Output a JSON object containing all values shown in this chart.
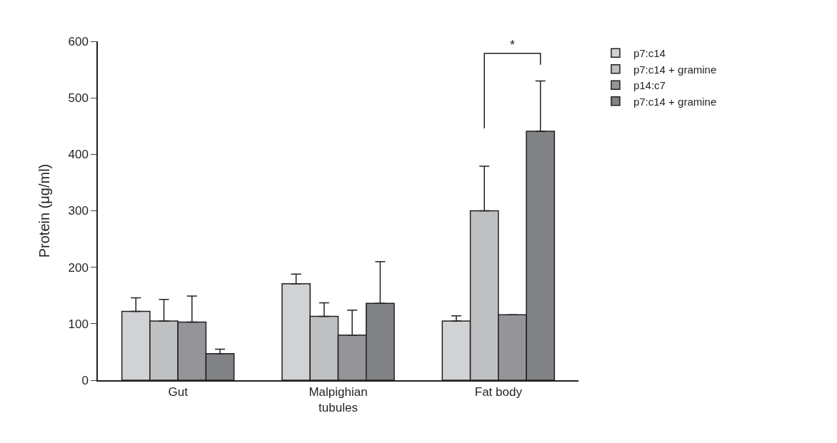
{
  "chart_data": {
    "type": "bar",
    "ylabel": "Protein (μg/ml)",
    "categories": [
      "Gut",
      "Malpighian\ntubules",
      "Fat body"
    ],
    "series": [
      {
        "name": "p7:c14",
        "color": "#d1d2d4",
        "values": [
          122,
          171,
          105
        ],
        "errors": [
          [
            122,
            146
          ],
          [
            171,
            188
          ],
          [
            105,
            114
          ]
        ]
      },
      {
        "name": "p7:c14 + gramine",
        "color": "#bfc0c2",
        "values": [
          105,
          113,
          300
        ],
        "errors": [
          [
            105,
            143
          ],
          [
            113,
            137
          ],
          [
            300,
            379
          ]
        ]
      },
      {
        "name": "p14:c7",
        "color": "#939598",
        "values": [
          103,
          80,
          116
        ],
        "errors": [
          [
            103,
            149
          ],
          [
            80,
            124
          ],
          null
        ]
      },
      {
        "name": "p7:c14 + gramine",
        "color": "#808285",
        "values": [
          47,
          136,
          441
        ],
        "errors": [
          [
            47,
            55
          ],
          [
            136,
            210
          ],
          [
            441,
            530
          ]
        ]
      }
    ],
    "ylim": [
      0,
      600
    ],
    "yticks": [
      0,
      100,
      200,
      300,
      400,
      500,
      600
    ],
    "grid": false,
    "legend": "top right",
    "annotations": [
      "*"
    ]
  }
}
